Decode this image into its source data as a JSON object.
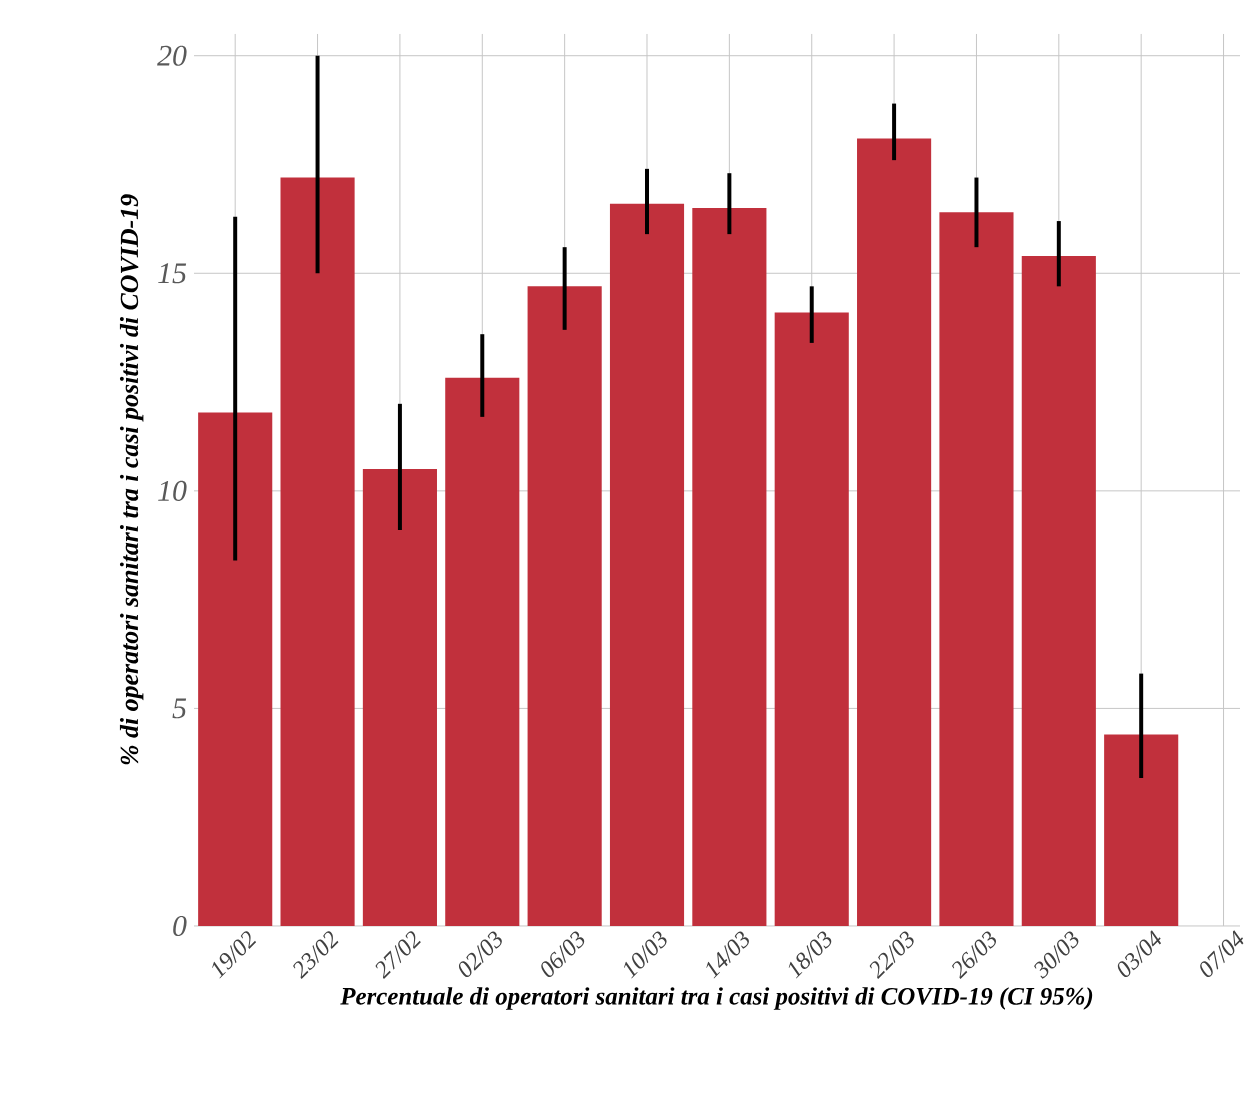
{
  "chart_data": {
    "type": "bar",
    "xlabel": "Percentuale di operatori sanitari tra i casi positivi di COVID-19 (CI 95%)",
    "ylabel": "% di operatori sanitari tra i casi positivi di COVID-19",
    "categories": [
      "19/02",
      "23/02",
      "27/02",
      "02/03",
      "06/03",
      "10/03",
      "14/03",
      "18/03",
      "22/03",
      "26/03",
      "30/03",
      "03/04",
      "07/04"
    ],
    "values": [
      11.8,
      17.2,
      10.5,
      12.6,
      14.7,
      16.6,
      16.5,
      14.1,
      18.1,
      16.4,
      15.4,
      4.4,
      null
    ],
    "errors": [
      [
        8.4,
        16.3
      ],
      [
        15.0,
        20.0
      ],
      [
        9.1,
        12.0
      ],
      [
        11.7,
        13.6
      ],
      [
        13.7,
        15.6
      ],
      [
        15.9,
        17.4
      ],
      [
        15.9,
        17.3
      ],
      [
        13.4,
        14.7
      ],
      [
        17.6,
        18.9
      ],
      [
        15.6,
        17.2
      ],
      [
        14.7,
        16.2
      ],
      [
        3.4,
        5.8
      ],
      null
    ],
    "color": "#c1303c",
    "ylim": [
      0,
      20.5
    ],
    "yticks": [
      0,
      5,
      10,
      15,
      20
    ],
    "grid": true
  }
}
